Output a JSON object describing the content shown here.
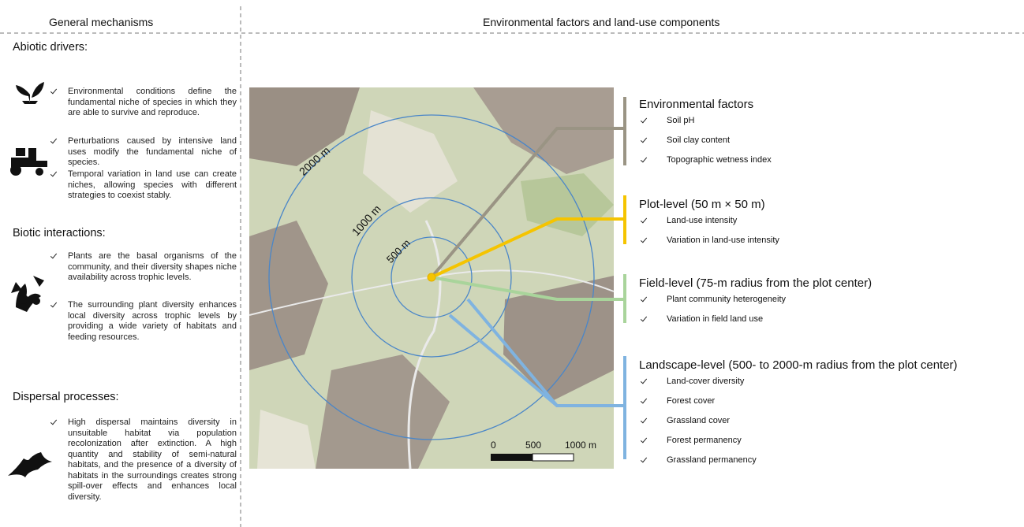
{
  "header": {
    "left": "General mechanisms",
    "right": "Environmental factors and land-use components"
  },
  "sections": [
    {
      "title": "Abiotic drivers:",
      "items": [
        "Environmental conditions define the fundamental niche of species in which they are able to survive and reproduce.",
        "Perturbations caused by intensive land uses modify the fundamental niche of species.",
        "Temporal variation in land use can create niches, allowing species with different strategies to coexist stably."
      ]
    },
    {
      "title": "Biotic interactions:",
      "items": [
        "Plants are the basal organisms of the community, and their diversity shapes niche availability across trophic levels.",
        "The surrounding plant diversity enhances local diversity across trophic levels by providing a wide variety of habitats and feeding resources."
      ]
    },
    {
      "title": "Dispersal processes:",
      "items": [
        "High dispersal maintains diversity in unsuitable habitat via population recolonization after extinction. A high quantity and stability of semi-natural habitats, and the presence of a diversity of habitats in the surroundings creates strong spill-over effects and enhances local diversity."
      ]
    }
  ],
  "map": {
    "rings": [
      "2000 m",
      "1000 m",
      "500 m"
    ],
    "scale": [
      "0",
      "500",
      "1000 m"
    ]
  },
  "groups": [
    {
      "title": "Environmental factors",
      "items": [
        "Soil pH",
        "Soil clay content",
        "Topographic wetness index"
      ]
    },
    {
      "title": "Plot-level (50 m × 50 m)",
      "items": [
        "Land-use intensity",
        "Variation in land-use intensity"
      ]
    },
    {
      "title": "Field-level (75-m radius from the plot center)",
      "items": [
        "Plant community heterogeneity",
        "Variation in field land use"
      ]
    },
    {
      "title": "Landscape-level (500- to 2000-m radius from the plot center)",
      "items": [
        "Land-cover diversity",
        "Forest cover",
        "Grassland cover",
        "Forest permanency",
        "Grassland permanency"
      ]
    }
  ]
}
